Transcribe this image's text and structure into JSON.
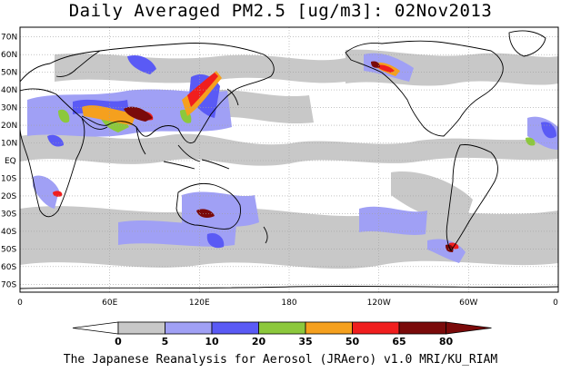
{
  "title": "Daily Averaged PM2.5 [ug/m3]: 02Nov2013",
  "footer": "The Japanese Reanalysis for Aerosol (JRAero) v1.0 MRI/KU_RIAM",
  "lat_labels": [
    "70N",
    "60N",
    "50N",
    "40N",
    "30N",
    "20N",
    "10N",
    "EQ",
    "10S",
    "20S",
    "30S",
    "40S",
    "50S",
    "60S",
    "70S"
  ],
  "lon_labels": [
    "0",
    "60E",
    "120E",
    "180",
    "120W",
    "60W",
    "0"
  ],
  "colorbar": {
    "ticks": [
      "0",
      "5",
      "10",
      "20",
      "35",
      "50",
      "65",
      "80"
    ],
    "colors": [
      "#ffffff",
      "#c8c8c8",
      "#a0a0f5",
      "#5a5af5",
      "#8cc83c",
      "#f5a01e",
      "#f01e1e",
      "#7a0a0a"
    ]
  }
}
